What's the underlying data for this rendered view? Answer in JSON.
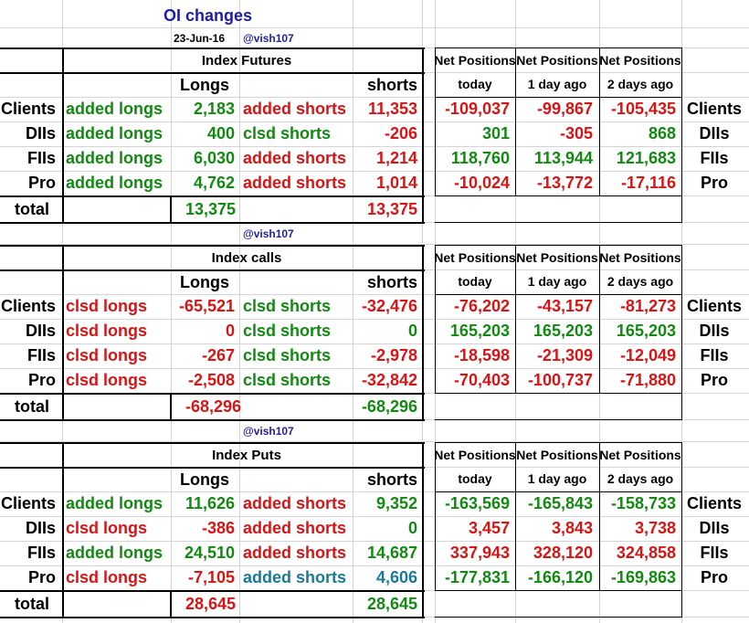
{
  "header": {
    "title": "OI changes",
    "date": "23-Jun-16",
    "handle": "@vish107"
  },
  "colors": {
    "green": "#128a12",
    "red": "#d81414",
    "blue": "#1d1daa",
    "teal": "#1a7a96"
  },
  "labels": {
    "longs": "Longs",
    "shorts": "shorts",
    "net_positions": "Net Positions",
    "today": "today",
    "one_day_ago": "1 day ago",
    "two_days_ago": "2 days ago",
    "total": "total"
  },
  "sections": [
    {
      "title": "Index Futures",
      "handle": "",
      "rows": [
        {
          "name": "Clients",
          "long_label": "added longs",
          "long_val": "2,183",
          "short_label": "added shorts",
          "short_val": "11,353",
          "net": [
            "-109,037",
            "-99,867",
            "-105,435"
          ],
          "name_right": "Clients"
        },
        {
          "name": "DIIs",
          "long_label": "added longs",
          "long_val": "400",
          "short_label": "clsd shorts",
          "short_val": "-206",
          "net": [
            "301",
            "-305",
            "868"
          ],
          "name_right": "DIIs"
        },
        {
          "name": "FIIs",
          "long_label": "added longs",
          "long_val": "6,030",
          "short_label": "added shorts",
          "short_val": "1,214",
          "net": [
            "118,760",
            "113,944",
            "121,683"
          ],
          "name_right": "FIIs"
        },
        {
          "name": "Pro",
          "long_label": "added longs",
          "long_val": "4,762",
          "short_label": "added shorts",
          "short_val": "1,014",
          "net": [
            "-10,024",
            "-13,772",
            "-17,116"
          ],
          "name_right": "Pro"
        }
      ],
      "total_long": "13,375",
      "total_short": "13,375"
    },
    {
      "title": "Index calls",
      "handle": "@vish107",
      "rows": [
        {
          "name": "Clients",
          "long_label": "clsd longs",
          "long_val": "-65,521",
          "short_label": "clsd shorts",
          "short_val": "-32,476",
          "net": [
            "-76,202",
            "-43,157",
            "-81,273"
          ],
          "name_right": "Clients"
        },
        {
          "name": "DIIs",
          "long_label": "clsd longs",
          "long_val": "0",
          "short_label": "clsd shorts",
          "short_val": "0",
          "net": [
            "165,203",
            "165,203",
            "165,203"
          ],
          "name_right": "DIIs"
        },
        {
          "name": "FIIs",
          "long_label": "clsd longs",
          "long_val": "-267",
          "short_label": "clsd shorts",
          "short_val": "-2,978",
          "net": [
            "-18,598",
            "-21,309",
            "-12,049"
          ],
          "name_right": "FIIs"
        },
        {
          "name": "Pro",
          "long_label": "clsd longs",
          "long_val": "-2,508",
          "short_label": "clsd shorts",
          "short_val": "-32,842",
          "net": [
            "-70,403",
            "-100,737",
            "-71,880"
          ],
          "name_right": "Pro"
        }
      ],
      "total_long": "-68,296",
      "total_short": "-68,296"
    },
    {
      "title": "Index Puts",
      "handle": "@vish107",
      "rows": [
        {
          "name": "Clients",
          "long_label": "added longs",
          "long_val": "11,626",
          "short_label": "added shorts",
          "short_val": "9,352",
          "net": [
            "-163,569",
            "-165,843",
            "-158,733"
          ],
          "name_right": "Clients"
        },
        {
          "name": "DIIs",
          "long_label": "clsd longs",
          "long_val": "-386",
          "short_label": "added shorts",
          "short_val": "0",
          "net": [
            "3,457",
            "3,843",
            "3,738"
          ],
          "name_right": "DIIs"
        },
        {
          "name": "FIIs",
          "long_label": "added longs",
          "long_val": "24,510",
          "short_label": "added shorts",
          "short_val": "14,687",
          "net": [
            "337,943",
            "328,120",
            "324,858"
          ],
          "name_right": "FIIs"
        },
        {
          "name": "Pro",
          "long_label": "clsd longs",
          "long_val": "-7,105",
          "short_label": "added shorts",
          "short_val": "4,606",
          "net": [
            "-177,831",
            "-166,120",
            "-169,863"
          ],
          "name_right": "Pro"
        }
      ],
      "total_long": "28,645",
      "total_short": "28,645"
    }
  ]
}
